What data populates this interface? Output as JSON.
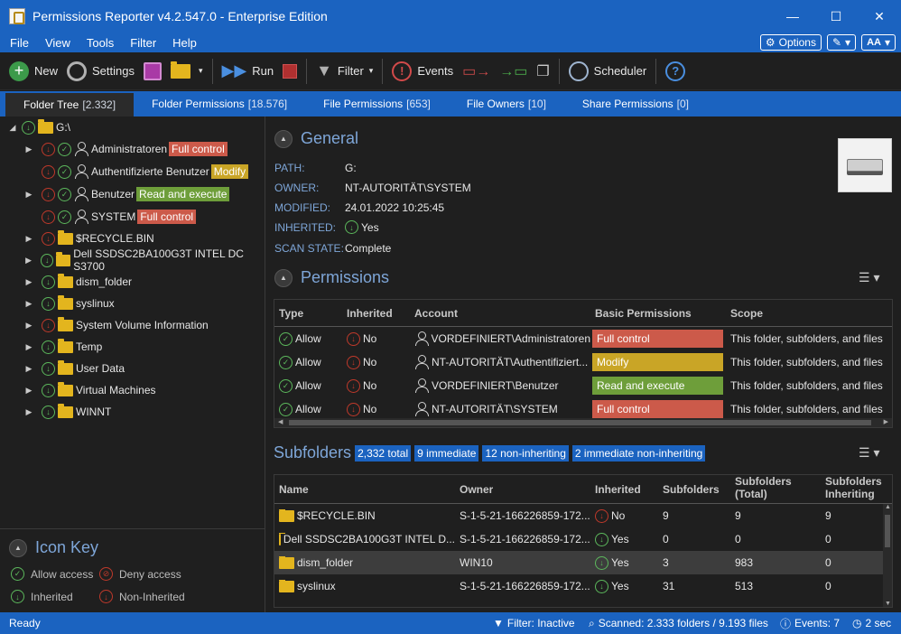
{
  "window": {
    "title": "Permissions Reporter v4.2.547.0 - Enterprise Edition",
    "min": "—",
    "max": "☐",
    "close": "✕"
  },
  "menu": {
    "file": "File",
    "view": "View",
    "tools": "Tools",
    "filter": "Filter",
    "help": "Help",
    "options": "Options",
    "font": "AA"
  },
  "toolbar": {
    "new": "New",
    "settings": "Settings",
    "run": "Run",
    "filter": "Filter",
    "events": "Events",
    "scheduler": "Scheduler"
  },
  "tabs": [
    {
      "label": "Folder Tree",
      "count": "[2.332]"
    },
    {
      "label": "Folder Permissions",
      "count": "[18.576]"
    },
    {
      "label": "File Permissions",
      "count": "[653]"
    },
    {
      "label": "File Owners",
      "count": "[10]"
    },
    {
      "label": "Share Permissions",
      "count": "[0]"
    }
  ],
  "tree": {
    "root": "G:\\",
    "accounts": [
      {
        "name": "Administratoren",
        "perm": "Full control",
        "color": "#cc5a4a"
      },
      {
        "name": "Authentifizierte Benutzer",
        "perm": "Modify",
        "color": "#c9a526"
      },
      {
        "name": "Benutzer",
        "perm": "Read and execute",
        "color": "#6e9e3a"
      },
      {
        "name": "SYSTEM",
        "perm": "Full control",
        "color": "#cc5a4a"
      }
    ],
    "folders": [
      "$RECYCLE.BIN",
      "Dell SSDSC2BA100G3T INTEL DC S3700",
      "dism_folder",
      "syslinux",
      "System Volume Information",
      "Temp",
      "User Data",
      "Virtual Machines",
      "WINNT"
    ]
  },
  "iconkey": {
    "title": "Icon Key",
    "allow": "Allow access",
    "deny": "Deny access",
    "inherited": "Inherited",
    "noninherited": "Non-Inherited"
  },
  "general": {
    "title": "General",
    "path_label": "PATH:",
    "path": "G:",
    "owner_label": "OWNER:",
    "owner": "NT-AUTORITÄT\\SYSTEM",
    "modified_label": "MODIFIED:",
    "modified": "24.01.2022 10:25:45",
    "inherited_label": "INHERITED:",
    "inherited": "Yes",
    "scan_label": "SCAN STATE:",
    "scan": "Complete"
  },
  "permissions": {
    "title": "Permissions",
    "headers": [
      "Type",
      "Inherited",
      "Account",
      "Basic Permissions",
      "Scope"
    ],
    "rows": [
      {
        "type": "Allow",
        "inherited": "No",
        "account": "VORDEFINIERT\\Administratoren",
        "perm": "Full control",
        "color": "#cc5a4a",
        "scope": "This folder, subfolders, and files"
      },
      {
        "type": "Allow",
        "inherited": "No",
        "account": "NT-AUTORITÄT\\Authentifiziert...",
        "perm": "Modify",
        "color": "#c9a526",
        "scope": "This folder, subfolders, and files"
      },
      {
        "type": "Allow",
        "inherited": "No",
        "account": "VORDEFINIERT\\Benutzer",
        "perm": "Read and execute",
        "color": "#6e9e3a",
        "scope": "This folder, subfolders, and files"
      },
      {
        "type": "Allow",
        "inherited": "No",
        "account": "NT-AUTORITÄT\\SYSTEM",
        "perm": "Full control",
        "color": "#cc5a4a",
        "scope": "This folder, subfolders, and files"
      }
    ]
  },
  "subfolders": {
    "title": "Subfolders",
    "badges": [
      "2,332 total",
      "9 immediate",
      "12 non-inheriting",
      "2 immediate non-inheriting"
    ],
    "headers": {
      "name": "Name",
      "owner": "Owner",
      "inherited": "Inherited",
      "subfolders": "Subfolders",
      "subtotal_1": "Subfolders",
      "subtotal_2": "(Total)",
      "subinh_1": "Subfolders",
      "subinh_2": "Inheriting"
    },
    "rows": [
      {
        "name": "$RECYCLE.BIN",
        "owner": "S-1-5-21-166226859-172...",
        "inherited": "No",
        "inh_ok": false,
        "sub": "9",
        "total": "9",
        "inh": "9"
      },
      {
        "name": "Dell SSDSC2BA100G3T INTEL D...",
        "owner": "S-1-5-21-166226859-172...",
        "inherited": "Yes",
        "inh_ok": true,
        "sub": "0",
        "total": "0",
        "inh": "0"
      },
      {
        "name": "dism_folder",
        "owner": "WIN10",
        "inherited": "Yes",
        "inh_ok": true,
        "sub": "3",
        "total": "983",
        "inh": "0"
      },
      {
        "name": "syslinux",
        "owner": "S-1-5-21-166226859-172...",
        "inherited": "Yes",
        "inh_ok": true,
        "sub": "31",
        "total": "513",
        "inh": "0"
      }
    ]
  },
  "status": {
    "ready": "Ready",
    "filter": "Filter: Inactive",
    "scanned": "Scanned: 2.333 folders / 9.193 files",
    "events": "Events: 7",
    "time": "2 sec"
  }
}
